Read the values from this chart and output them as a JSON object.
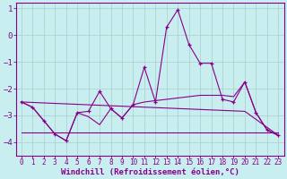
{
  "bg_color": "#c8eef0",
  "line_color": "#880088",
  "grid_color": "#aacccc",
  "xlabel": "Windchill (Refroidissement éolien,°C)",
  "xlabel_fontsize": 6.5,
  "xtick_fontsize": 5.5,
  "ytick_fontsize": 6.5,
  "xlim": [
    -0.5,
    23.5
  ],
  "ylim": [
    -4.5,
    1.2
  ],
  "yticks": [
    1,
    0,
    -1,
    -2,
    -3,
    -4
  ],
  "xticks": [
    0,
    1,
    2,
    3,
    4,
    5,
    6,
    7,
    8,
    9,
    10,
    11,
    12,
    13,
    14,
    15,
    16,
    17,
    18,
    19,
    20,
    21,
    22,
    23
  ],
  "main_line": {
    "x": [
      0,
      1,
      2,
      3,
      4,
      5,
      6,
      7,
      8,
      9,
      10,
      11,
      12,
      13,
      14,
      15,
      16,
      17,
      18,
      19,
      20,
      21,
      22,
      23
    ],
    "y": [
      -2.5,
      -2.7,
      -3.2,
      -3.7,
      -3.95,
      -2.9,
      -2.85,
      -2.1,
      -2.75,
      -3.1,
      -2.6,
      -1.2,
      -2.5,
      0.3,
      0.95,
      -0.35,
      -1.05,
      -1.05,
      -2.4,
      -2.5,
      -1.75,
      -2.9,
      -3.55,
      -3.75
    ]
  },
  "smooth_line": {
    "x": [
      0,
      1,
      2,
      3,
      4,
      5,
      6,
      7,
      8,
      9,
      10,
      11,
      12,
      13,
      14,
      15,
      16,
      17,
      18,
      19,
      20,
      21,
      22,
      23
    ],
    "y": [
      -2.5,
      -2.7,
      -3.2,
      -3.7,
      -3.95,
      -2.9,
      -3.05,
      -3.35,
      -2.75,
      -3.1,
      -2.6,
      -2.5,
      -2.45,
      -2.4,
      -2.35,
      -2.3,
      -2.25,
      -2.25,
      -2.25,
      -2.3,
      -1.75,
      -2.9,
      -3.55,
      -3.75
    ]
  },
  "flat_line": {
    "x": [
      0,
      23
    ],
    "y": [
      -3.65,
      -3.65
    ]
  },
  "trend_line": {
    "x": [
      0,
      20,
      23
    ],
    "y": [
      -2.5,
      -2.85,
      -3.75
    ]
  }
}
